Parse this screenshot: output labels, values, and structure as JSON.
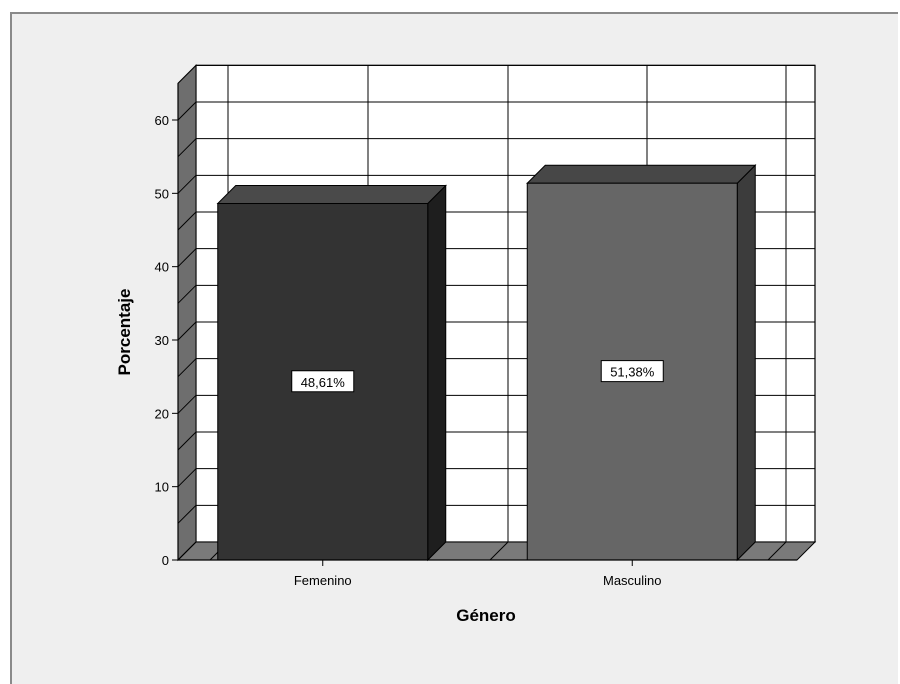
{
  "chart_data": {
    "type": "bar",
    "categories": [
      "Femenino",
      "Masculino"
    ],
    "values": [
      48.61,
      51.38
    ],
    "data_labels": [
      "48,61%",
      "51,38%"
    ],
    "xlabel": "Género",
    "ylabel": "Porcentaje",
    "ylim": [
      0,
      65
    ],
    "yticks": [
      "0",
      "10",
      "20",
      "30",
      "40",
      "50",
      "60"
    ],
    "ytick_values": [
      0,
      10,
      20,
      30,
      40,
      50,
      60
    ],
    "grid": true,
    "three_d": true,
    "colors": {
      "background": "#efefef",
      "plot_area": "#ffffff",
      "bar_femenino": "#333333",
      "bar_masculino": "#666666",
      "grid": "#000000"
    }
  }
}
